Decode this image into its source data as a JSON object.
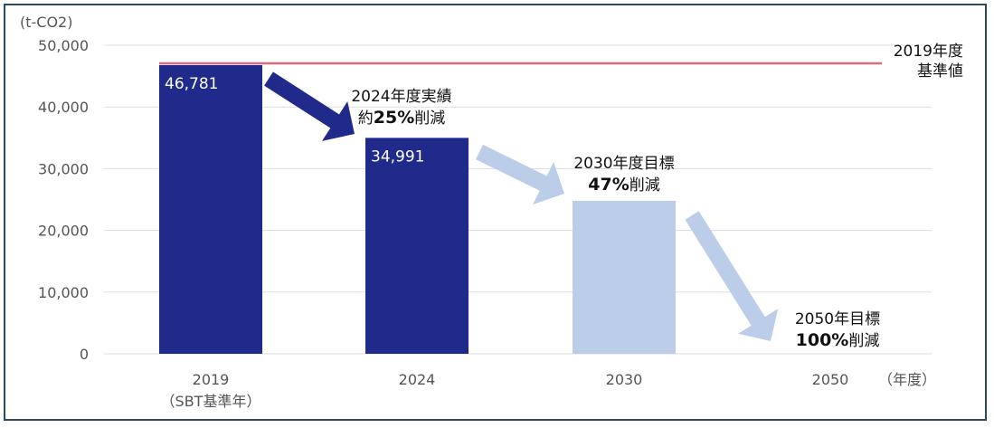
{
  "chart_data": {
    "type": "bar",
    "unit_label": "(t-CO2)",
    "x_unit_label": "（年度）",
    "categories": [
      "2019",
      "2024",
      "2030",
      "2050"
    ],
    "category_sublabels": [
      "（SBT基準年）",
      "",
      "",
      ""
    ],
    "values": [
      46781,
      34991,
      24794,
      0
    ],
    "value_labels": [
      "46,781",
      "34,991",
      "",
      ""
    ],
    "bar_kinds": [
      "actual",
      "actual",
      "target",
      "target"
    ],
    "ylim": [
      0,
      50000
    ],
    "yticks": [
      0,
      10000,
      20000,
      30000,
      40000,
      50000
    ],
    "ytick_labels": [
      "0",
      "10,000",
      "20,000",
      "30,000",
      "40,000",
      "50,000"
    ],
    "grid": true,
    "reference_line": {
      "value": 46781,
      "label_lines": [
        "2019年度",
        "基準値"
      ]
    },
    "annotations": [
      {
        "category": "2024",
        "line1": "2024年度実績",
        "prefix": "約",
        "bold": "25%",
        "suffix": "削減"
      },
      {
        "category": "2030",
        "line1": "2030年度目標",
        "prefix": "",
        "bold": "47%",
        "suffix": "削減"
      },
      {
        "category": "2050",
        "line1": "2050年目標",
        "prefix": "",
        "bold": "100%",
        "suffix": "削減"
      }
    ]
  },
  "colors": {
    "actual_bar": "#1f2a8a",
    "target_bar": "#bccde9",
    "reference_line": "#e06a80",
    "grid": "#dddddd",
    "frame": "#2c4a5e"
  }
}
